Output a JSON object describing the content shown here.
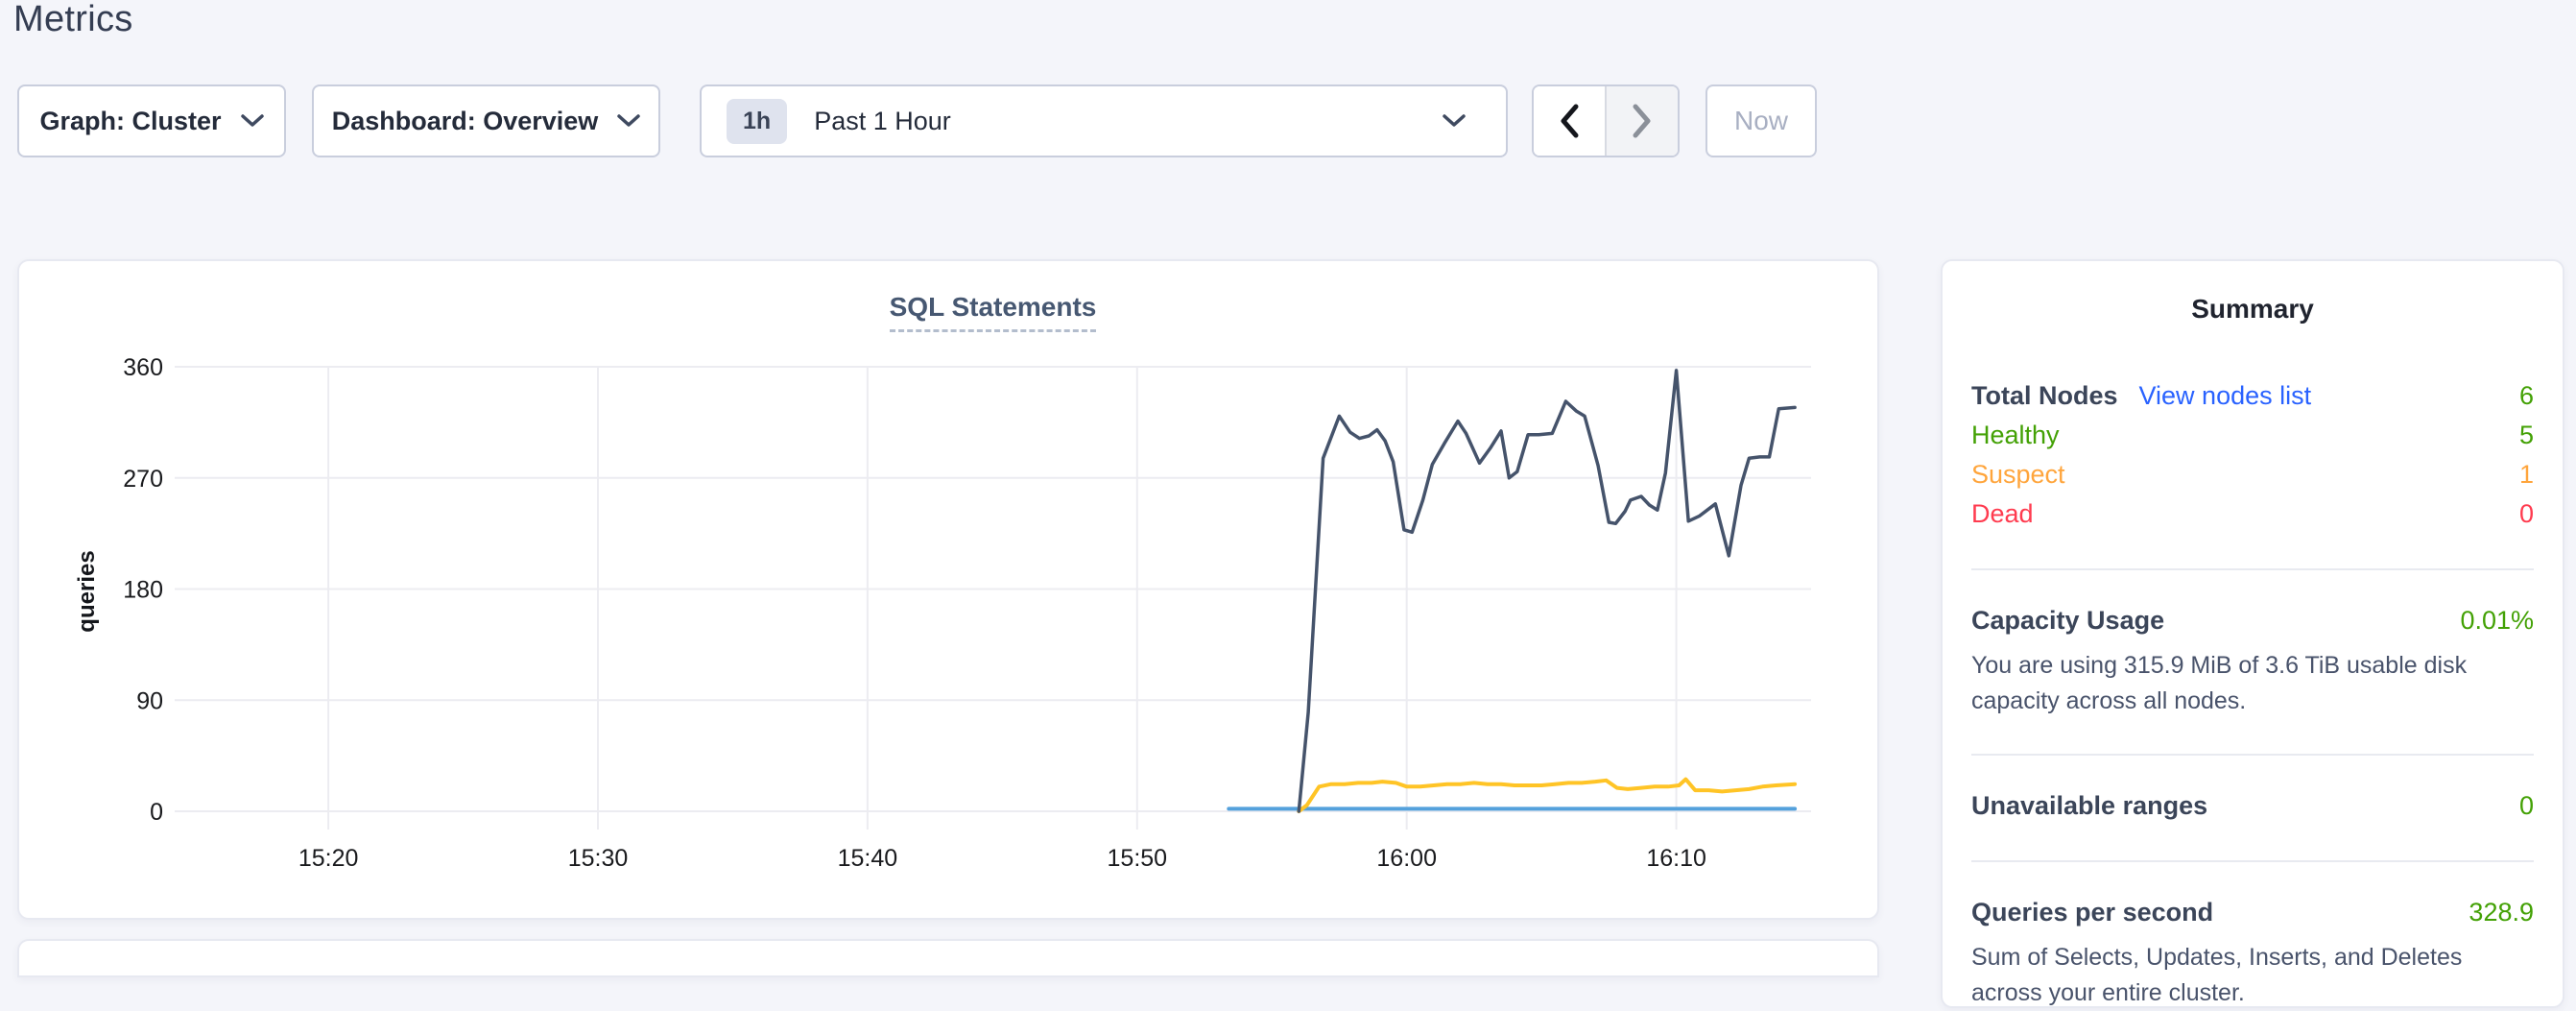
{
  "page": {
    "title": "Metrics"
  },
  "colors": {
    "green": "#43a105",
    "orange": "#ffa53c",
    "red": "#ff3b4f",
    "blue": "#2962ff",
    "page_bg": "#f4f5fa"
  },
  "toolbar": {
    "graph_dropdown": "Graph: Cluster",
    "dashboard_dropdown": "Dashboard: Overview",
    "time_selector": {
      "badge": "1h",
      "label": "Past 1 Hour"
    },
    "now_button": "Now"
  },
  "chart_data": {
    "type": "line",
    "title": "SQL Statements",
    "ylabel": "queries",
    "ylim": [
      0,
      360
    ],
    "yticks": [
      0,
      90,
      180,
      270,
      360
    ],
    "xlim_minutes": [
      14.3,
      75.0
    ],
    "xticks": [
      {
        "minute": 20,
        "label": "15:20"
      },
      {
        "minute": 30,
        "label": "15:30"
      },
      {
        "minute": 40,
        "label": "15:40"
      },
      {
        "minute": 50,
        "label": "15:50"
      },
      {
        "minute": 60,
        "label": "16:00"
      },
      {
        "minute": 70,
        "label": "16:10"
      }
    ],
    "grid": true,
    "legend": "none",
    "series": [
      {
        "name": "blue-flat-line",
        "color": "#54a1dc",
        "width": 4,
        "points": [
          [
            53.4,
            2
          ],
          [
            74.4,
            2
          ]
        ]
      },
      {
        "name": "yellow-line",
        "color": "#ffc426",
        "width": 4,
        "points": [
          [
            56.0,
            0
          ],
          [
            56.3,
            5
          ],
          [
            56.75,
            20
          ],
          [
            57.2,
            22
          ],
          [
            57.7,
            22
          ],
          [
            58.2,
            23
          ],
          [
            58.7,
            23
          ],
          [
            59.1,
            24
          ],
          [
            59.6,
            23
          ],
          [
            60.0,
            20
          ],
          [
            60.5,
            20
          ],
          [
            61.0,
            21
          ],
          [
            61.5,
            22
          ],
          [
            62.0,
            22
          ],
          [
            62.5,
            23
          ],
          [
            63.0,
            22
          ],
          [
            63.5,
            22
          ],
          [
            64.0,
            21
          ],
          [
            64.5,
            21
          ],
          [
            65.0,
            21
          ],
          [
            65.5,
            22
          ],
          [
            66.0,
            23
          ],
          [
            66.5,
            23
          ],
          [
            67.0,
            24
          ],
          [
            67.4,
            25
          ],
          [
            67.8,
            19
          ],
          [
            68.2,
            18
          ],
          [
            68.7,
            19
          ],
          [
            69.2,
            20
          ],
          [
            69.7,
            20
          ],
          [
            70.1,
            21
          ],
          [
            70.35,
            26
          ],
          [
            70.7,
            17
          ],
          [
            71.2,
            17
          ],
          [
            71.7,
            16
          ],
          [
            72.2,
            17
          ],
          [
            72.7,
            18
          ],
          [
            73.2,
            20
          ],
          [
            73.7,
            21
          ],
          [
            74.4,
            22
          ]
        ]
      },
      {
        "name": "navy-line",
        "color": "#45536b",
        "width": 3.5,
        "points": [
          [
            56.0,
            0
          ],
          [
            56.35,
            80
          ],
          [
            56.9,
            286
          ],
          [
            57.5,
            320
          ],
          [
            57.9,
            307
          ],
          [
            58.25,
            302
          ],
          [
            58.6,
            304
          ],
          [
            58.9,
            309
          ],
          [
            59.2,
            300
          ],
          [
            59.5,
            283
          ],
          [
            59.9,
            228
          ],
          [
            60.2,
            226
          ],
          [
            60.6,
            252
          ],
          [
            60.95,
            281
          ],
          [
            61.4,
            298
          ],
          [
            61.9,
            316
          ],
          [
            62.2,
            306
          ],
          [
            62.7,
            282
          ],
          [
            63.1,
            294
          ],
          [
            63.5,
            308
          ],
          [
            63.8,
            270
          ],
          [
            64.1,
            275
          ],
          [
            64.5,
            305
          ],
          [
            64.9,
            305
          ],
          [
            65.4,
            306
          ],
          [
            65.9,
            332
          ],
          [
            66.3,
            324
          ],
          [
            66.6,
            320
          ],
          [
            67.1,
            280
          ],
          [
            67.5,
            234
          ],
          [
            67.75,
            233
          ],
          [
            68.1,
            243
          ],
          [
            68.3,
            252
          ],
          [
            68.7,
            255
          ],
          [
            69.0,
            248
          ],
          [
            69.3,
            244
          ],
          [
            69.6,
            274
          ],
          [
            70.0,
            357
          ],
          [
            70.45,
            235
          ],
          [
            70.85,
            239
          ],
          [
            71.15,
            244
          ],
          [
            71.45,
            249
          ],
          [
            71.95,
            207
          ],
          [
            72.4,
            264
          ],
          [
            72.7,
            286
          ],
          [
            73.1,
            287
          ],
          [
            73.45,
            287
          ],
          [
            73.8,
            326
          ],
          [
            74.4,
            327
          ]
        ]
      }
    ]
  },
  "summary": {
    "title": "Summary",
    "nodes": {
      "label": "Total Nodes",
      "link": "View nodes list",
      "value": "6",
      "rows": [
        {
          "label": "Healthy",
          "value": "5",
          "color": "#43a105"
        },
        {
          "label": "Suspect",
          "value": "1",
          "color": "#ffa53c"
        },
        {
          "label": "Dead",
          "value": "0",
          "color": "#ff3b4f"
        }
      ]
    },
    "capacity": {
      "label": "Capacity Usage",
      "value": "0.01%",
      "description": "You are using 315.9 MiB of 3.6 TiB usable disk capacity across all nodes."
    },
    "unavailable": {
      "label": "Unavailable ranges",
      "value": "0"
    },
    "qps": {
      "label": "Queries per second",
      "value": "328.9",
      "description": "Sum of Selects, Updates, Inserts, and Deletes across your entire cluster."
    }
  }
}
